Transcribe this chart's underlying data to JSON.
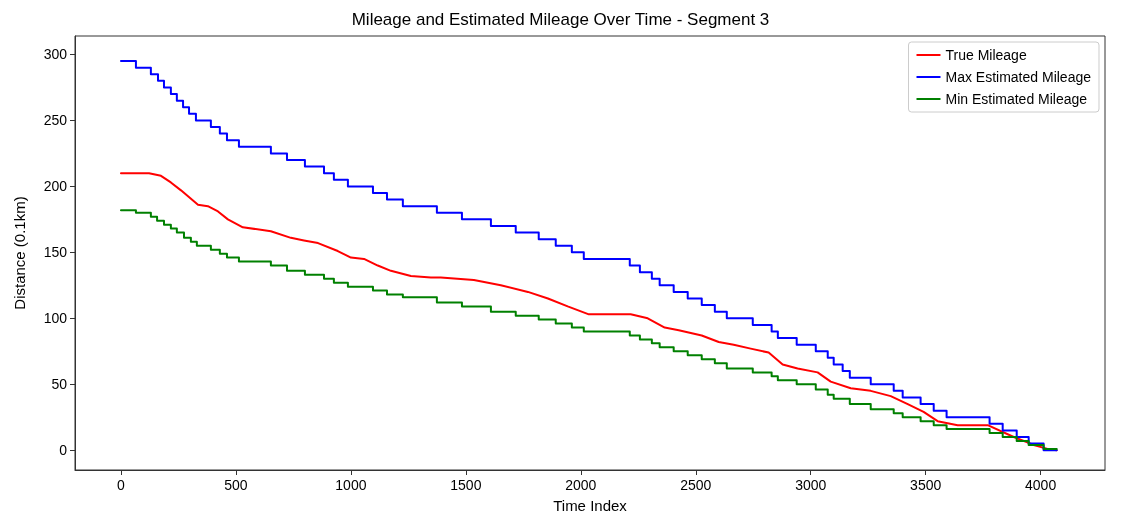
{
  "chart_data": {
    "type": "line",
    "title": "Mileage and Estimated Mileage Over Time - Segment 3",
    "xlabel": "Time Index",
    "ylabel": "Distance (0.1km)",
    "xlim": [
      -200,
      4280
    ],
    "ylim": [
      -15,
      314
    ],
    "xticks": [
      0,
      500,
      1000,
      1500,
      2000,
      2500,
      3000,
      3500,
      4000
    ],
    "yticks": [
      0,
      50,
      100,
      150,
      200,
      250,
      300
    ],
    "grid": false,
    "legend": "top right",
    "marker": "none",
    "line_style": "solid",
    "series": [
      {
        "name": "True Mileage",
        "color": "#ff0000",
        "x": [
          0,
          122,
          174,
          217,
          261,
          335,
          378,
          422,
          465,
          530,
          652,
          739,
          796,
          857,
          943,
          1000,
          1057,
          1117,
          1174,
          1261,
          1348,
          1391,
          1535,
          1652,
          1770,
          1857,
          1943,
          2035,
          2217,
          2291,
          2365,
          2426,
          2526,
          2600,
          2665,
          2739,
          2817,
          2878,
          2943,
          3030,
          3087,
          3174,
          3261,
          3348,
          3422,
          3491,
          3552,
          3639,
          3770,
          3883,
          3970,
          4030,
          4070
        ],
        "values": [
          210,
          210,
          208,
          203,
          197,
          186,
          185,
          181,
          175,
          169,
          166,
          161,
          159,
          157,
          151,
          146,
          145,
          140,
          136,
          132,
          131,
          131,
          129,
          125,
          120,
          115,
          109,
          103,
          103,
          100,
          93,
          91,
          87,
          82,
          80,
          77,
          74,
          65,
          62,
          59,
          52,
          47,
          45,
          41,
          35,
          29,
          22,
          19,
          19,
          10,
          4,
          1,
          0
        ]
      },
      {
        "name": "Max Estimated Mileage",
        "color": "#0000ff",
        "type": "step",
        "x": [
          0,
          65,
          130,
          161,
          187,
          217,
          243,
          270,
          296,
          326,
          391,
          430,
          461,
          513,
          652,
          722,
          800,
          883,
          926,
          987,
          1096,
          1157,
          1226,
          1374,
          1483,
          1609,
          1717,
          1817,
          1891,
          1961,
          2013,
          2213,
          2257,
          2309,
          2343,
          2404,
          2465,
          2526,
          2583,
          2635,
          2748,
          2830,
          2857,
          2939,
          3022,
          3074,
          3100,
          3139,
          3170,
          3261,
          3361,
          3400,
          3478,
          3535,
          3591,
          3778,
          3835,
          3896,
          3948,
          4013,
          4070
        ],
        "values": [
          295,
          290,
          285,
          280,
          275,
          270,
          265,
          260,
          255,
          250,
          245,
          240,
          235,
          230,
          225,
          220,
          215,
          210,
          205,
          200,
          195,
          190,
          185,
          180,
          175,
          170,
          165,
          160,
          155,
          150,
          145,
          140,
          135,
          130,
          125,
          120,
          115,
          110,
          105,
          100,
          95,
          90,
          85,
          80,
          75,
          70,
          65,
          60,
          55,
          50,
          45,
          40,
          35,
          30,
          25,
          20,
          15,
          10,
          5,
          0,
          0
        ]
      },
      {
        "name": "Min Estimated Mileage",
        "color": "#008000",
        "type": "step",
        "x": [
          0,
          65,
          130,
          157,
          187,
          217,
          243,
          274,
          304,
          330,
          391,
          430,
          461,
          513,
          652,
          722,
          800,
          883,
          926,
          987,
          1096,
          1157,
          1226,
          1374,
          1483,
          1609,
          1717,
          1817,
          1891,
          1961,
          2013,
          2213,
          2257,
          2309,
          2343,
          2404,
          2465,
          2526,
          2583,
          2635,
          2748,
          2830,
          2857,
          2939,
          3022,
          3074,
          3100,
          3170,
          3261,
          3361,
          3400,
          3478,
          3535,
          3591,
          3778,
          3835,
          3896,
          3948,
          4013,
          4070
        ],
        "values": [
          182,
          180,
          177,
          174,
          171,
          168,
          165,
          161,
          158,
          155,
          152,
          149,
          146,
          143,
          140,
          136,
          133,
          130,
          127,
          124,
          121,
          118,
          116,
          112,
          109,
          105,
          102,
          99,
          96,
          93,
          90,
          87,
          84,
          81,
          78,
          75,
          72,
          69,
          66,
          62,
          59,
          56,
          53,
          50,
          46,
          42,
          39,
          35,
          31,
          28,
          25,
          22,
          19,
          16,
          13,
          10,
          7,
          4,
          1,
          1
        ]
      }
    ]
  }
}
